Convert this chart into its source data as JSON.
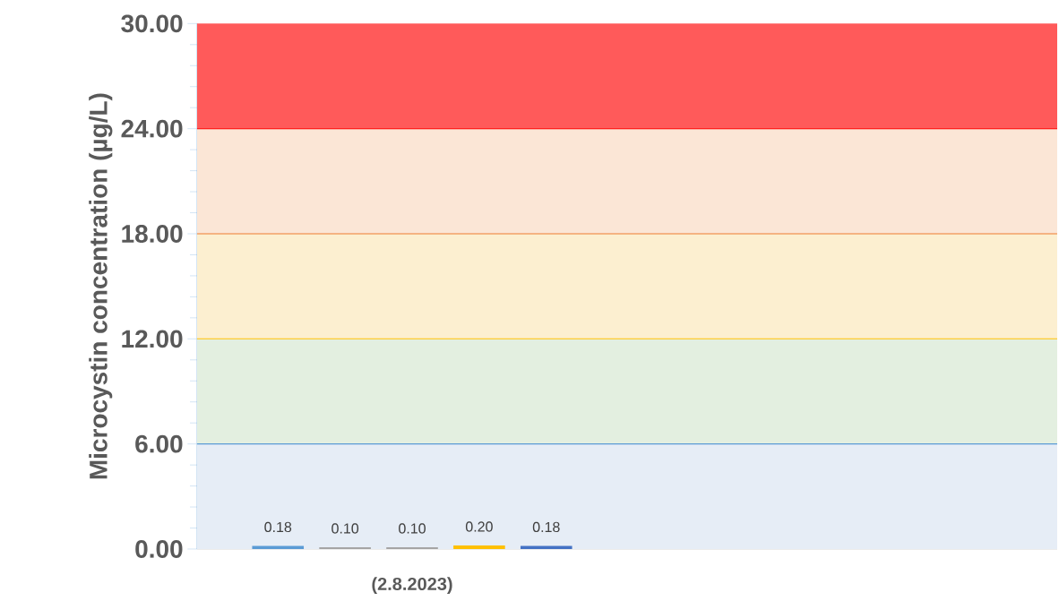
{
  "chart_data": {
    "type": "bar",
    "ylabel": "Microcystin concentration (µg/L)",
    "categories": [
      "(2.8.2023)",
      null
    ],
    "series": [
      {
        "color": "#5b9bd5",
        "values": [
          0.18,
          null
        ],
        "value_labels": [
          "0.18",
          null
        ]
      },
      {
        "color": "#a5a5a5",
        "values": [
          0.1,
          null
        ],
        "value_labels": [
          "0.10",
          null
        ]
      },
      {
        "color": "#a5a5a5",
        "values": [
          0.1,
          null
        ],
        "value_labels": [
          "0.10",
          null
        ]
      },
      {
        "color": "#ffc000",
        "values": [
          0.2,
          null
        ],
        "value_labels": [
          "0.20",
          null
        ]
      },
      {
        "color": "#4472c4",
        "values": [
          0.18,
          null
        ],
        "value_labels": [
          "0.18",
          null
        ]
      }
    ],
    "ylim": [
      0,
      30
    ],
    "yticks": [
      {
        "value": 0,
        "label": "0.00"
      },
      {
        "value": 6,
        "label": "6.00"
      },
      {
        "value": 12,
        "label": "12.00"
      },
      {
        "value": 18,
        "label": "18.00"
      },
      {
        "value": 24,
        "label": "24.00"
      },
      {
        "value": 30,
        "label": "30.00"
      }
    ],
    "bands": [
      {
        "axis": "y",
        "from": 0,
        "to": 6,
        "color": "#e6edf6"
      },
      {
        "axis": "y",
        "from": 6,
        "to": 12,
        "color": "#e3efe0"
      },
      {
        "axis": "y",
        "from": 12,
        "to": 18,
        "color": "#fcefd0"
      },
      {
        "axis": "y",
        "from": 18,
        "to": 24,
        "color": "#fbe6d6"
      },
      {
        "axis": "y",
        "from": 24,
        "to": 30,
        "color": "#ff5a5a"
      }
    ],
    "ref_lines": [
      {
        "axis": "y",
        "value": 6,
        "color": "#5b9bd5"
      },
      {
        "axis": "y",
        "value": 12,
        "color": "#ffc000"
      },
      {
        "axis": "y",
        "value": 18,
        "color": "#ed7d31"
      },
      {
        "axis": "y",
        "value": 24,
        "color": "#ff0000"
      }
    ],
    "grid": false
  }
}
